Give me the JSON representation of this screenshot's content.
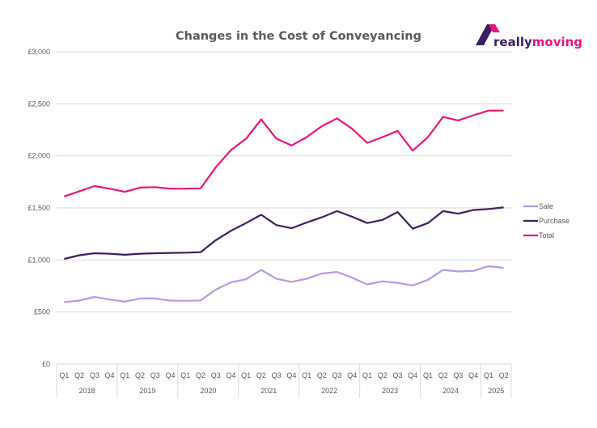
{
  "logo": {
    "word_part1": "really",
    "word_part2": "moving",
    "colors": {
      "dark": "#3d1e5f",
      "pink": "#e6157e"
    }
  },
  "chart_data": {
    "type": "line",
    "title": "Changes in the Cost of Conveyancing",
    "xlabel": "",
    "ylabel": "",
    "ylim": [
      0,
      3000
    ],
    "yticks": [
      0,
      500,
      1000,
      1500,
      2000,
      2500,
      3000
    ],
    "ytick_labels": [
      "£0",
      "£500",
      "£1,000",
      "£1,500",
      "£2,000",
      "£2,500",
      "£3,000"
    ],
    "grid": true,
    "legend_position": "right",
    "quarters": [
      "Q1",
      "Q2",
      "Q3",
      "Q4",
      "Q1",
      "Q2",
      "Q3",
      "Q4",
      "Q1",
      "Q2",
      "Q3",
      "Q4",
      "Q1",
      "Q2",
      "Q3",
      "Q4",
      "Q1",
      "Q2",
      "Q3",
      "Q4",
      "Q1",
      "Q2",
      "Q3",
      "Q4",
      "Q1",
      "Q2",
      "Q3",
      "Q4",
      "Q1",
      "Q2"
    ],
    "years": [
      {
        "label": "2018",
        "count": 4
      },
      {
        "label": "2019",
        "count": 4
      },
      {
        "label": "2020",
        "count": 4
      },
      {
        "label": "2021",
        "count": 4
      },
      {
        "label": "2022",
        "count": 4
      },
      {
        "label": "2023",
        "count": 4
      },
      {
        "label": "2024",
        "count": 4
      },
      {
        "label": "2025",
        "count": 2
      }
    ],
    "series": [
      {
        "name": "Sale",
        "color": "#b899e0",
        "values": [
          595,
          610,
          645,
          620,
          600,
          630,
          630,
          610,
          608,
          612,
          715,
          785,
          815,
          905,
          820,
          790,
          820,
          870,
          885,
          830,
          765,
          795,
          780,
          755,
          810,
          905,
          890,
          895,
          940,
          925
        ]
      },
      {
        "name": "Purchase",
        "color": "#3d1e5f",
        "values": [
          1010,
          1045,
          1065,
          1060,
          1050,
          1060,
          1065,
          1068,
          1070,
          1075,
          1190,
          1280,
          1355,
          1435,
          1335,
          1305,
          1360,
          1410,
          1470,
          1415,
          1355,
          1385,
          1460,
          1300,
          1355,
          1470,
          1445,
          1480,
          1490,
          1505
        ]
      },
      {
        "name": "Total",
        "color": "#e6157e",
        "values": [
          1610,
          1660,
          1710,
          1685,
          1655,
          1695,
          1700,
          1685,
          1685,
          1688,
          1890,
          2055,
          2165,
          2350,
          2165,
          2100,
          2180,
          2285,
          2360,
          2260,
          2125,
          2180,
          2240,
          2050,
          2180,
          2375,
          2340,
          2390,
          2435,
          2435
        ]
      }
    ]
  }
}
